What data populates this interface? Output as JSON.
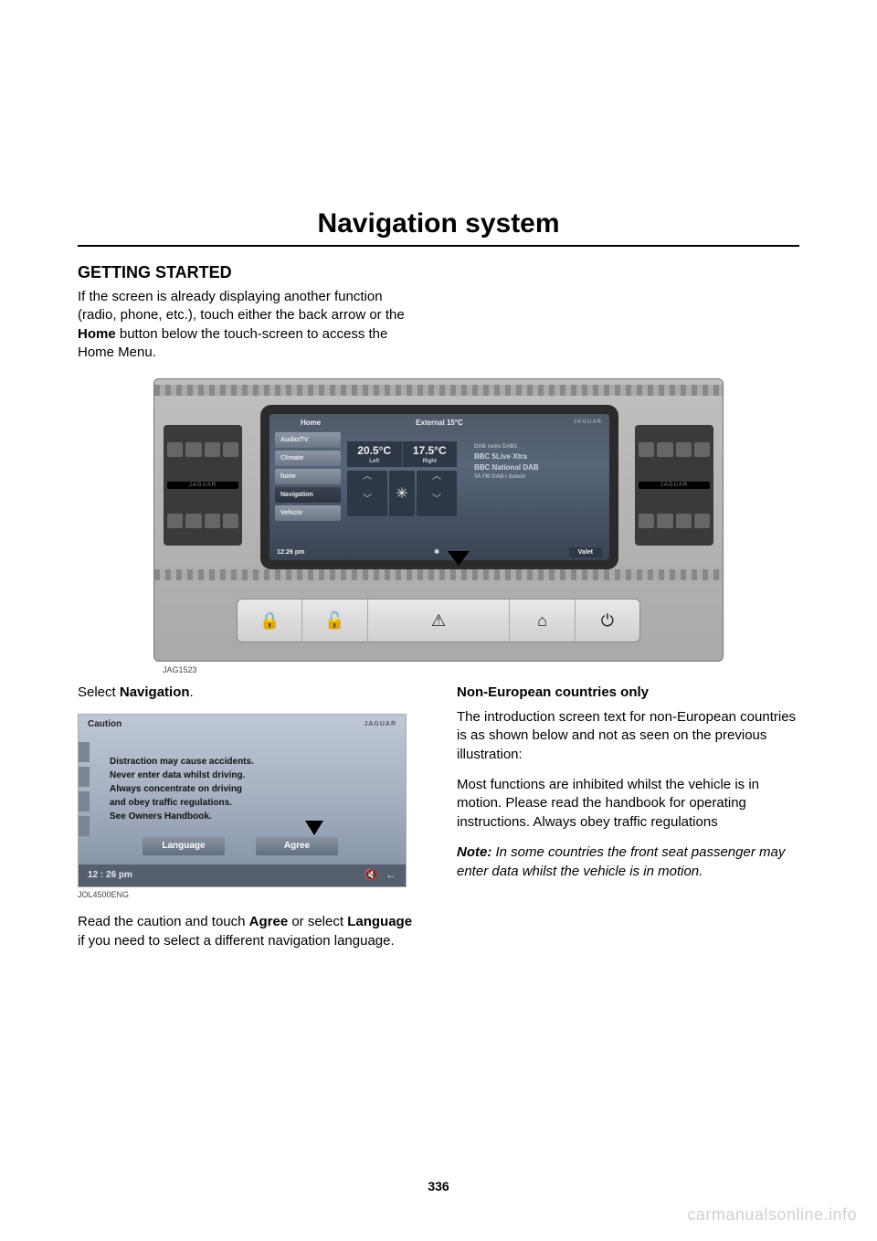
{
  "page_title": "Navigation system",
  "section_heading": "GETTING STARTED",
  "intro_before_home": "If the screen is already displaying another function (radio, phone, etc.), touch either the back arrow or the ",
  "intro_home_word": "Home",
  "intro_after_home": " button below the touch-screen to access the Home Menu.",
  "dashboard": {
    "vent_badge": "JAGUAR",
    "topbar_home": "Home",
    "topbar_external": "External  15°C",
    "brand_logo": "JAGUAR",
    "menu": [
      "Audio/TV",
      "Climate",
      "hone",
      "Navigation",
      "Vehicle"
    ],
    "temp_left": "20.5°C",
    "temp_left_label": "Left",
    "temp_right": "17.5°C",
    "temp_right_label": "Right",
    "radio_line1": "DAB radio   DAB1",
    "radio_line2": "BBC 5Live Xtra",
    "radio_line3": "BBC National DAB",
    "radio_line4": "TA  FM DAB-i Subch",
    "time": "12:26 pm",
    "valet": "Valet",
    "fig_id": "JAG1523"
  },
  "left_col": {
    "select_before": "Select ",
    "select_word": "Navigation",
    "select_after": ".",
    "caution": {
      "header": "Caution",
      "logo": "JAGUAR",
      "line1": "Distraction may cause accidents.",
      "line2": "Never enter data whilst driving.",
      "line3": "Always concentrate on driving",
      "line4": "and obey traffic regulations.",
      "line5": "See Owners Handbook.",
      "btn_language": "Language",
      "btn_agree": "Agree",
      "footer_time": "12 : 26 pm",
      "fig_id": "JOL4500ENG"
    },
    "para2_a": "Read the caution and touch ",
    "para2_b": "Agree",
    "para2_c": " or select ",
    "para2_d": "Language",
    "para2_e": " if you need to select a different navigation language."
  },
  "right_col": {
    "subhead": "Non-European countries only",
    "p1": "The introduction screen text for non-European countries is as shown below and not as seen on the previous illustration:",
    "p2": "Most functions are inhibited whilst the vehicle is in motion. Please read the handbook for operating instructions. Always obey traffic regulations",
    "note_label": "Note:",
    "note_body": " In some countries the front seat passenger may enter data whilst the vehicle is in motion."
  },
  "page_number": "336",
  "watermark": "carmanualsonline.info"
}
